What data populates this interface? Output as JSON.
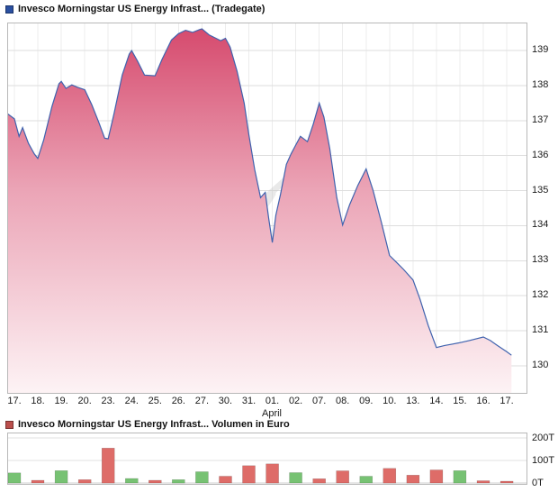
{
  "chart_data": [
    {
      "type": "area",
      "title": "Invesco Morningstar US Energy Infrast... (Tradegate)",
      "legend_color": "#2b50a1",
      "line_color": "#3f62ae",
      "fill_gradient": [
        "#d5476b",
        "#eba4b6",
        "#fdf3f5"
      ],
      "x_tick_labels": [
        "17.",
        "18.",
        "19.",
        "20.",
        "23.",
        "24.",
        "25.",
        "26.",
        "27.",
        "30.",
        "31.",
        "01.",
        "02.",
        "07.",
        "08.",
        "09.",
        "10.",
        "13.",
        "14.",
        "15.",
        "16.",
        "17."
      ],
      "x_month_label": "April",
      "y_ticks": [
        139,
        138,
        137,
        136,
        135,
        134,
        133,
        132,
        131,
        130
      ],
      "ylim": [
        129.2,
        139.8
      ],
      "points": [
        [
          -0.3,
          137.2
        ],
        [
          0,
          137.05
        ],
        [
          0.2,
          136.55
        ],
        [
          0.35,
          136.8
        ],
        [
          0.6,
          136.35
        ],
        [
          0.85,
          136.05
        ],
        [
          1,
          135.92
        ],
        [
          1.25,
          136.45
        ],
        [
          1.6,
          137.4
        ],
        [
          1.9,
          138.05
        ],
        [
          2,
          138.12
        ],
        [
          2.2,
          137.92
        ],
        [
          2.45,
          138.02
        ],
        [
          2.7,
          137.95
        ],
        [
          3,
          137.88
        ],
        [
          3.3,
          137.45
        ],
        [
          3.6,
          136.95
        ],
        [
          3.85,
          136.5
        ],
        [
          4,
          136.48
        ],
        [
          4.25,
          137.2
        ],
        [
          4.6,
          138.3
        ],
        [
          4.9,
          138.9
        ],
        [
          5,
          139.0
        ],
        [
          5.25,
          138.7
        ],
        [
          5.55,
          138.3
        ],
        [
          6,
          138.28
        ],
        [
          6.3,
          138.75
        ],
        [
          6.7,
          139.3
        ],
        [
          7,
          139.48
        ],
        [
          7.3,
          139.58
        ],
        [
          7.6,
          139.52
        ],
        [
          7.9,
          139.6
        ],
        [
          8,
          139.62
        ],
        [
          8.3,
          139.45
        ],
        [
          8.6,
          139.35
        ],
        [
          8.8,
          139.28
        ],
        [
          9,
          139.35
        ],
        [
          9.2,
          139.1
        ],
        [
          9.5,
          138.4
        ],
        [
          9.8,
          137.5
        ],
        [
          10,
          136.6
        ],
        [
          10.25,
          135.6
        ],
        [
          10.5,
          134.8
        ],
        [
          10.7,
          134.95
        ],
        [
          10.85,
          134.2
        ],
        [
          11,
          133.52
        ],
        [
          11.15,
          134.3
        ],
        [
          11.35,
          134.9
        ],
        [
          11.6,
          135.75
        ],
        [
          11.8,
          136.05
        ],
        [
          12,
          136.3
        ],
        [
          12.2,
          136.55
        ],
        [
          12.5,
          136.4
        ],
        [
          12.75,
          136.9
        ],
        [
          13,
          137.5
        ],
        [
          13.2,
          137.1
        ],
        [
          13.45,
          136.2
        ],
        [
          13.75,
          134.8
        ],
        [
          14,
          134.02
        ],
        [
          14.3,
          134.6
        ],
        [
          14.65,
          135.15
        ],
        [
          15,
          135.62
        ],
        [
          15.3,
          135.0
        ],
        [
          15.65,
          134.1
        ],
        [
          16,
          133.15
        ],
        [
          16.3,
          132.95
        ],
        [
          16.6,
          132.75
        ],
        [
          17,
          132.45
        ],
        [
          17.3,
          131.9
        ],
        [
          17.65,
          131.15
        ],
        [
          18,
          130.52
        ],
        [
          18.35,
          130.58
        ],
        [
          18.7,
          130.62
        ],
        [
          19,
          130.66
        ],
        [
          19.4,
          130.72
        ],
        [
          20,
          130.82
        ],
        [
          20.3,
          130.72
        ],
        [
          20.6,
          130.58
        ],
        [
          21,
          130.4
        ],
        [
          21.2,
          130.3
        ]
      ]
    },
    {
      "type": "bar",
      "title": "Invesco Morningstar US Energy Infrast... Volumen in Euro",
      "legend_color": "#bb4f4c",
      "up_color": "#77c273",
      "down_color": "#de6c68",
      "categories": [
        "17.",
        "18.",
        "19.",
        "20.",
        "23.",
        "24.",
        "25.",
        "26.",
        "27.",
        "30.",
        "31.",
        "01.",
        "02.",
        "07.",
        "08.",
        "09.",
        "10.",
        "13.",
        "14.",
        "15.",
        "16.",
        "17."
      ],
      "values": [
        45,
        12,
        55,
        15,
        155,
        20,
        12,
        15,
        50,
        30,
        77,
        85,
        46,
        19,
        54,
        30,
        65,
        35,
        58,
        55,
        10,
        8
      ],
      "directions": [
        "up",
        "down",
        "up",
        "down",
        "down",
        "up",
        "down",
        "up",
        "up",
        "down",
        "down",
        "down",
        "up",
        "down",
        "down",
        "up",
        "down",
        "down",
        "down",
        "up",
        "down",
        "down"
      ],
      "unit": "T",
      "y_tick_labels": [
        "200T",
        "100T",
        "0T"
      ],
      "y_tick_values": [
        200,
        100,
        0
      ],
      "y_gridlines": [
        100,
        200
      ],
      "ylim": [
        0,
        224
      ]
    }
  ]
}
